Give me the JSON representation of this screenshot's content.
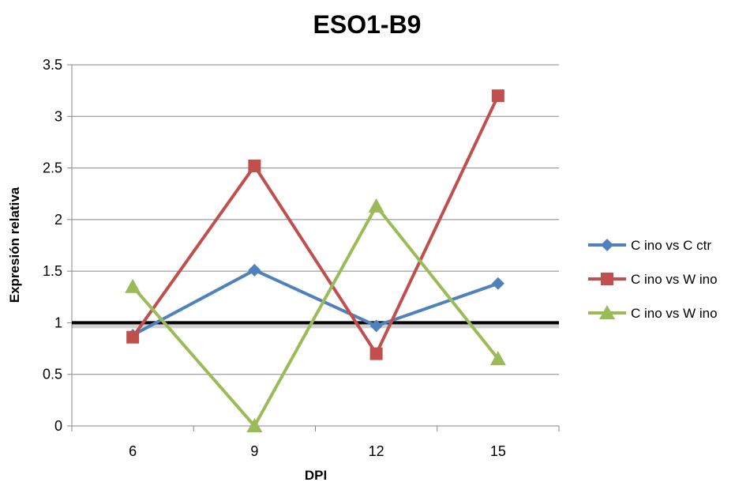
{
  "chart_data": {
    "type": "line",
    "title": "ESO1-B9",
    "xlabel": "DPI",
    "ylabel": "Expresión relativa",
    "categories": [
      "6",
      "9",
      "12",
      "15"
    ],
    "ylim": [
      0,
      3.5
    ],
    "yticks": [
      "0",
      "0.5",
      "1",
      "1.5",
      "2",
      "2.5",
      "3",
      "3.5"
    ],
    "grid": true,
    "legend": "right",
    "reference_line": {
      "value": 1,
      "color": "#000000"
    },
    "series": [
      {
        "name": "C ino vs C ctr",
        "values": [
          0.88,
          1.51,
          0.97,
          1.38
        ],
        "color": "#4F81BD",
        "marker": "diamond"
      },
      {
        "name": "C ino vs W ino",
        "values": [
          0.86,
          2.52,
          0.7,
          3.2
        ],
        "color": "#C0504D",
        "marker": "square"
      },
      {
        "name": "C ino vs W ino",
        "values": [
          1.35,
          0.0,
          2.13,
          0.65
        ],
        "color": "#9BBB59",
        "marker": "triangle"
      }
    ]
  }
}
